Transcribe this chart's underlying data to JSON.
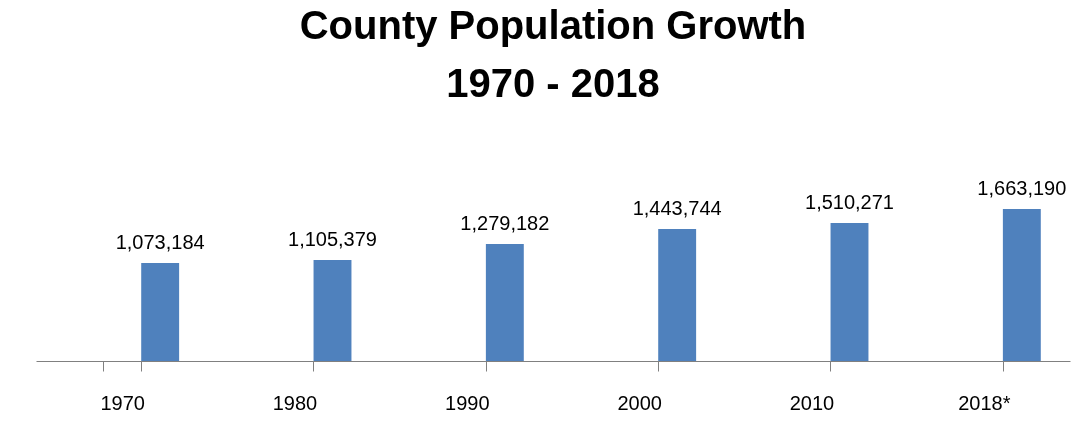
{
  "chart_data": {
    "type": "bar",
    "title": [
      "County Population Growth",
      "1970 - 2018"
    ],
    "categories": [
      "1970",
      "1980",
      "1990",
      "2000",
      "2010",
      "2018*"
    ],
    "values": [
      1073184,
      1105379,
      1279182,
      1443744,
      1510271,
      1663190
    ],
    "value_labels": [
      "1,073,184",
      "1,105,379",
      "1,279,182",
      "1,443,744",
      "1,510,271",
      "1,663,190"
    ],
    "color": "#4f81bd",
    "grid": false
  }
}
